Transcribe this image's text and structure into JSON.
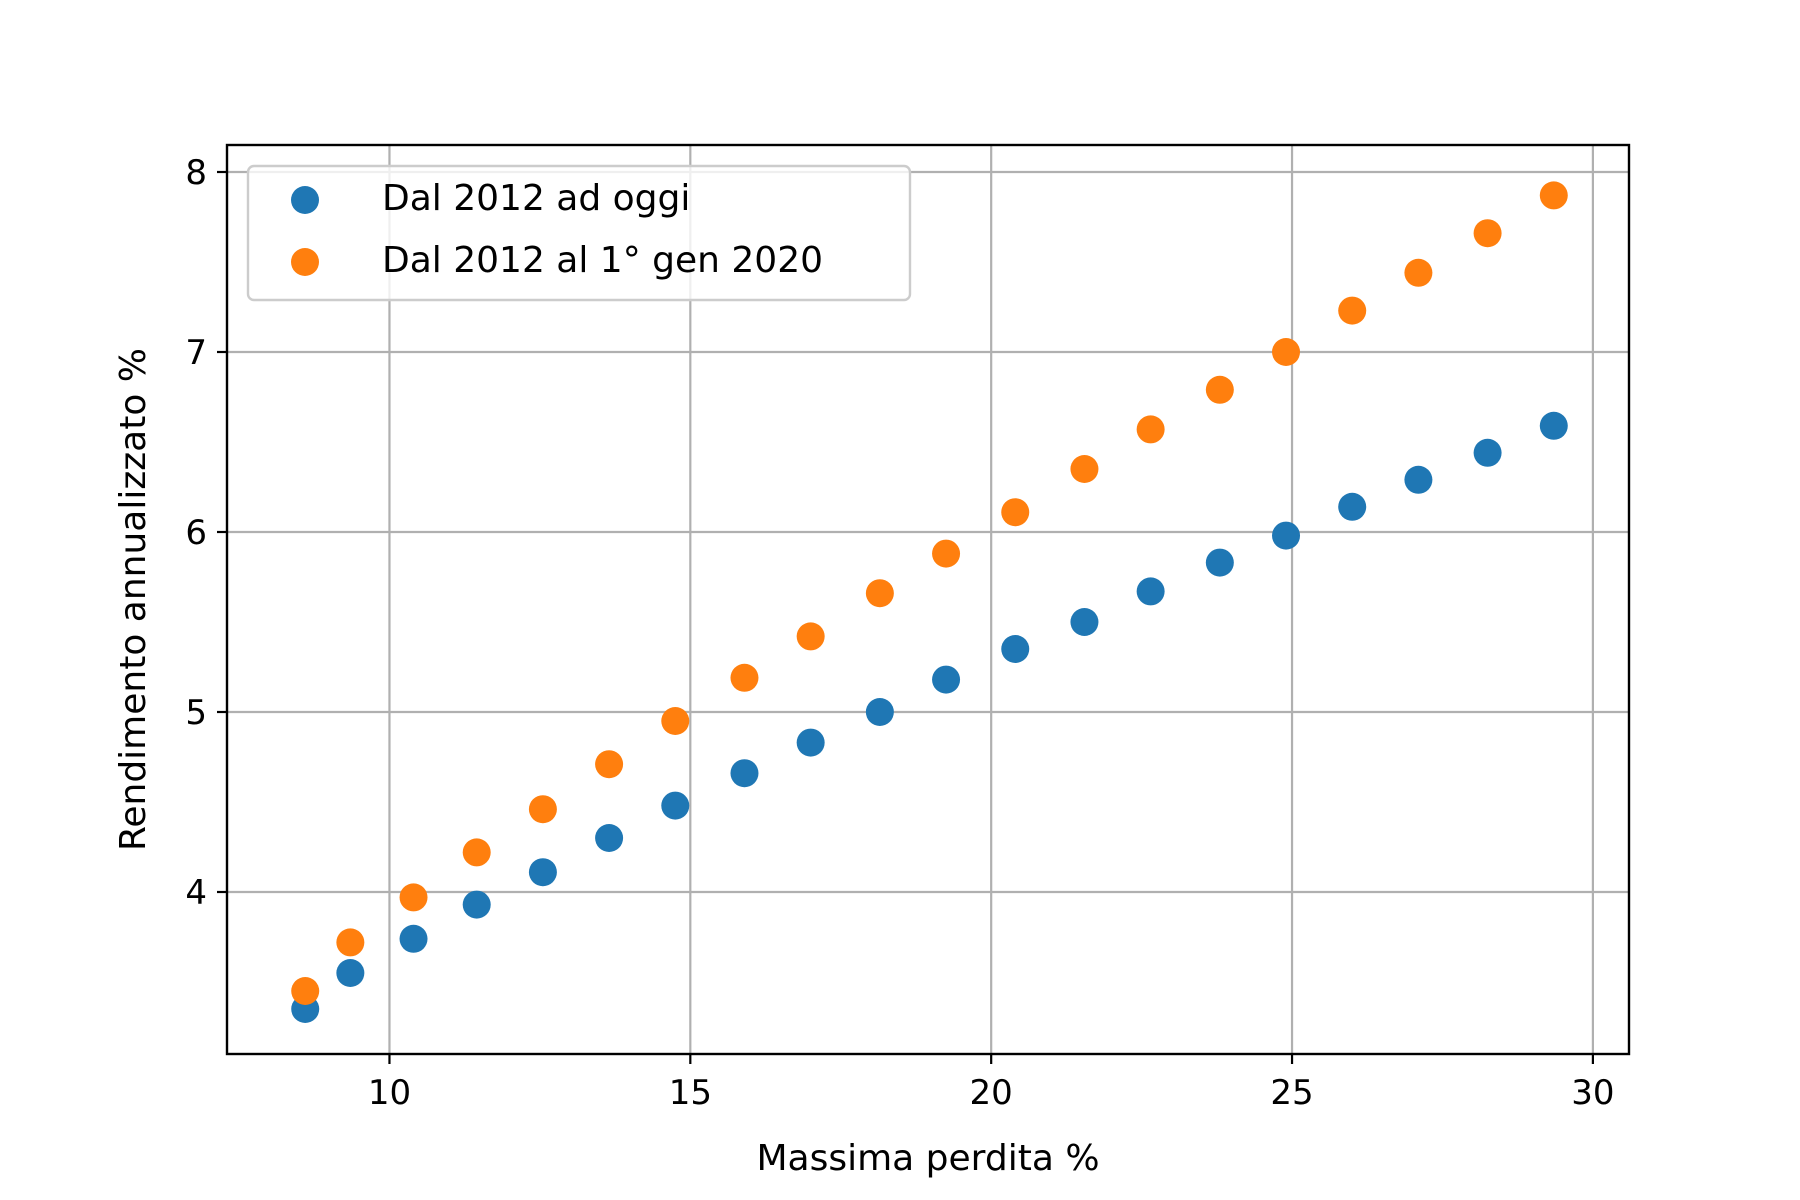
{
  "chart_data": {
    "type": "scatter",
    "title": "",
    "xlabel": "Massima perdita %",
    "ylabel": "Rendimento annualizzato %",
    "xlim": [
      7.3,
      30.6
    ],
    "ylim": [
      3.1,
      8.15
    ],
    "xticks": [
      10,
      15,
      20,
      25,
      30
    ],
    "yticks": [
      4,
      5,
      6,
      7,
      8
    ],
    "grid": true,
    "legend_position": "top-left",
    "series": [
      {
        "name": "Dal 2012 ad oggi",
        "color": "#1f77b4",
        "x": [
          8.6,
          9.35,
          10.4,
          11.45,
          12.55,
          13.65,
          14.75,
          15.9,
          17.0,
          18.15,
          19.25,
          20.4,
          21.55,
          22.65,
          23.8,
          24.9,
          26.0,
          27.1,
          28.25,
          29.35
        ],
        "y": [
          3.35,
          3.55,
          3.74,
          3.93,
          4.11,
          4.3,
          4.48,
          4.66,
          4.83,
          5.0,
          5.18,
          5.35,
          5.5,
          5.67,
          5.83,
          5.98,
          6.14,
          6.29,
          6.44,
          6.59
        ]
      },
      {
        "name": "Dal 2012 al 1° gen 2020",
        "color": "#ff7f0e",
        "x": [
          8.6,
          9.35,
          10.4,
          11.45,
          12.55,
          13.65,
          14.75,
          15.9,
          17.0,
          18.15,
          19.25,
          20.4,
          21.55,
          22.65,
          23.8,
          24.9,
          26.0,
          27.1,
          28.25,
          29.35
        ],
        "y": [
          3.45,
          3.72,
          3.97,
          4.22,
          4.46,
          4.71,
          4.95,
          5.19,
          5.42,
          5.66,
          5.88,
          6.11,
          6.35,
          6.57,
          6.79,
          7.0,
          7.23,
          7.44,
          7.66,
          7.87
        ]
      }
    ]
  }
}
